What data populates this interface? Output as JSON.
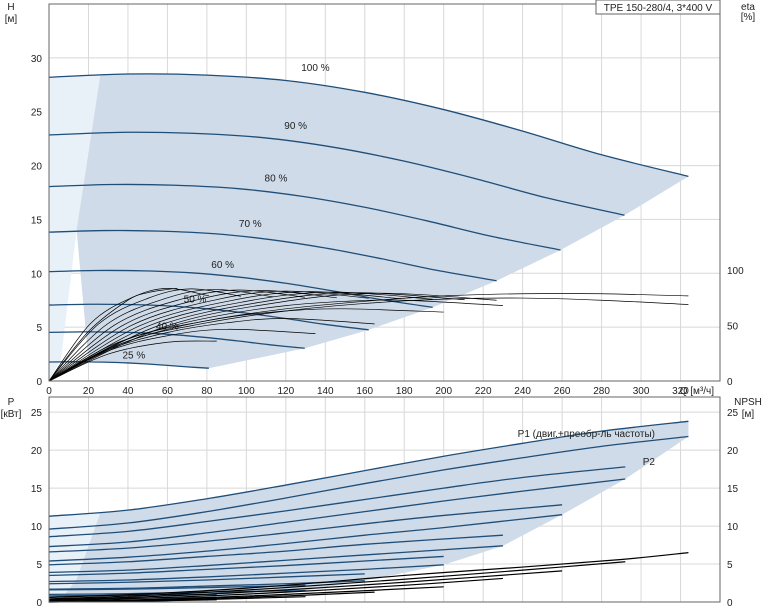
{
  "chart_data": [
    {
      "type": "line",
      "panel": "head",
      "title_box": "TPE 150-280/4, 3*400 V",
      "ylabel": "H",
      "yunit": "[м]",
      "ylabel_right": "eta",
      "yunit_right": "[%]",
      "xlabel": "Q [м³/ч]",
      "xlim": [
        0,
        340
      ],
      "ylim": [
        0,
        35
      ],
      "ylim_right": [
        0,
        100
      ],
      "x_ticks": [
        0,
        20,
        40,
        60,
        80,
        100,
        120,
        140,
        160,
        180,
        200,
        220,
        240,
        260,
        280,
        300,
        320
      ],
      "y_ticks": [
        0,
        5,
        10,
        15,
        20,
        25,
        30
      ],
      "y_ticks_right": [
        0,
        50,
        100
      ],
      "grid": true,
      "colors": {
        "curve": "#1f4e79",
        "area": "#cfdbe8",
        "area_light": "#e8f0f8",
        "efficiency": "#000000"
      },
      "head_curves": [
        {
          "label": "100 %",
          "speed": 1.0,
          "label_at": [
            135,
            28.8
          ]
        },
        {
          "label": "90 %",
          "speed": 0.9,
          "label_at": [
            125,
            23.4
          ]
        },
        {
          "label": "80 %",
          "speed": 0.8,
          "label_at": [
            115,
            18.5
          ]
        },
        {
          "label": "70 %",
          "speed": 0.7,
          "label_at": [
            102,
            14.3
          ]
        },
        {
          "label": "60 %",
          "speed": 0.6,
          "label_at": [
            88,
            10.5
          ]
        },
        {
          "label": "50 %",
          "speed": 0.5,
          "label_at": [
            74,
            7.3
          ]
        },
        {
          "label": "40 %",
          "speed": 0.4,
          "label_at": [
            60,
            4.8
          ]
        },
        {
          "label": "25 %",
          "speed": 0.25,
          "label_at": [
            43,
            2.1
          ]
        }
      ],
      "head_base": {
        "x": [
          0,
          40,
          80,
          120,
          160,
          200,
          240,
          280,
          324
        ],
        "y": [
          28.2,
          28.5,
          28.4,
          27.9,
          26.8,
          25.2,
          23.2,
          21.0,
          19.0
        ]
      },
      "efficiency_curves": [
        {
          "x": [
            0,
            20,
            40,
            50,
            60,
            65
          ],
          "y": [
            0,
            4.6,
            7.5,
            8.2,
            8.5,
            8.6
          ]
        },
        {
          "x": [
            0,
            40,
            80,
            120,
            160,
            200,
            240,
            280,
            324
          ],
          "y": [
            0,
            3.9,
            5.6,
            6.7,
            7.4,
            7.9,
            8.1,
            8.1,
            7.9
          ]
        },
        {
          "x": [
            0,
            40,
            80,
            120,
            160,
            200,
            240,
            280,
            324
          ],
          "y": [
            0,
            3.7,
            5.4,
            6.5,
            7.2,
            7.6,
            7.7,
            7.5,
            7.1
          ]
        },
        {
          "x": [
            0,
            30,
            60,
            90,
            120,
            150,
            180,
            230
          ],
          "y": [
            0,
            3.2,
            5.0,
            6.2,
            7.0,
            7.4,
            7.5,
            7.0
          ]
        },
        {
          "x": [
            0,
            30,
            60,
            90,
            120,
            150,
            200
          ],
          "y": [
            0,
            3.0,
            4.8,
            5.9,
            6.5,
            6.7,
            6.4
          ]
        },
        {
          "x": [
            0,
            30,
            60,
            90,
            120,
            165
          ],
          "y": [
            0,
            2.9,
            4.5,
            5.4,
            5.8,
            5.3
          ]
        },
        {
          "x": [
            0,
            30,
            60,
            90,
            135
          ],
          "y": [
            0,
            2.8,
            4.2,
            4.8,
            4.4
          ]
        },
        {
          "x": [
            0,
            30,
            60,
            85
          ],
          "y": [
            0,
            2.5,
            3.6,
            3.7
          ]
        }
      ]
    },
    {
      "type": "line",
      "panel": "power",
      "ylabel": "P",
      "yunit": "[кВт]",
      "ylabel_right": "NPSH",
      "yunit_right": "[м]",
      "xlim": [
        0,
        340
      ],
      "ylim": [
        0,
        27
      ],
      "ylim_right": [
        0,
        27
      ],
      "y_ticks": [
        0,
        5,
        10,
        15,
        20,
        25
      ],
      "y_ticks_right": [
        0,
        5,
        10,
        15,
        20,
        25
      ],
      "grid": true,
      "labels": {
        "p1": "P1 (двиг.+преобр-ль частоты)",
        "p2": "P2"
      },
      "p1_curves": [
        {
          "x": [
            0,
            40,
            80,
            120,
            160,
            200,
            240,
            280,
            324
          ],
          "y": [
            11.3,
            12.1,
            13.6,
            15.4,
            17.3,
            19.2,
            20.9,
            22.5,
            23.8
          ]
        },
        {
          "x": [
            0,
            40,
            80,
            120,
            160,
            200,
            240,
            292
          ],
          "y": [
            8.6,
            9.3,
            10.6,
            12.0,
            13.5,
            15.0,
            16.4,
            17.8
          ]
        },
        {
          "x": [
            0,
            40,
            80,
            120,
            160,
            200,
            260
          ],
          "y": [
            6.6,
            7.1,
            8.0,
            9.1,
            10.3,
            11.4,
            12.8
          ]
        },
        {
          "x": [
            0,
            40,
            80,
            120,
            160,
            230
          ],
          "y": [
            4.9,
            5.3,
            6.0,
            6.7,
            7.6,
            8.8
          ]
        },
        {
          "x": [
            0,
            40,
            80,
            120,
            160,
            200
          ],
          "y": [
            3.5,
            3.8,
            4.3,
            4.8,
            5.4,
            6.0
          ]
        },
        {
          "x": [
            0,
            40,
            80,
            120,
            160
          ],
          "y": [
            2.4,
            2.6,
            2.9,
            3.3,
            3.7
          ]
        },
        {
          "x": [
            0,
            40,
            80,
            130
          ],
          "y": [
            1.6,
            1.7,
            1.9,
            2.2
          ]
        },
        {
          "x": [
            0,
            40,
            85
          ],
          "y": [
            0.8,
            0.9,
            1.0
          ]
        }
      ],
      "p2_curves": [
        {
          "x": [
            0,
            40,
            80,
            120,
            160,
            200,
            240,
            280,
            324
          ],
          "y": [
            9.6,
            10.4,
            11.9,
            13.7,
            15.6,
            17.4,
            19.0,
            20.5,
            21.8
          ]
        },
        {
          "x": [
            0,
            40,
            80,
            120,
            160,
            200,
            240,
            292
          ],
          "y": [
            7.3,
            7.9,
            9.1,
            10.5,
            11.9,
            13.3,
            14.6,
            16.2
          ]
        },
        {
          "x": [
            0,
            40,
            80,
            120,
            160,
            200,
            260
          ],
          "y": [
            5.4,
            5.9,
            6.7,
            7.7,
            8.8,
            9.8,
            11.5
          ]
        },
        {
          "x": [
            0,
            40,
            80,
            120,
            160,
            230
          ],
          "y": [
            3.9,
            4.2,
            4.8,
            5.5,
            6.2,
            7.4
          ]
        },
        {
          "x": [
            0,
            40,
            80,
            120,
            160,
            200
          ],
          "y": [
            2.7,
            2.9,
            3.3,
            3.8,
            4.3,
            4.9
          ]
        },
        {
          "x": [
            0,
            40,
            80,
            120,
            160
          ],
          "y": [
            1.7,
            1.8,
            2.1,
            2.4,
            2.8
          ]
        },
        {
          "x": [
            0,
            40,
            80,
            130
          ],
          "y": [
            1.0,
            1.1,
            1.3,
            1.5
          ]
        },
        {
          "x": [
            0,
            40,
            85
          ],
          "y": [
            0.4,
            0.5,
            0.6
          ]
        }
      ],
      "npsh_curves": [
        {
          "x": [
            0,
            60,
            120,
            180,
            240,
            290,
            324
          ],
          "y": [
            0.6,
            1.2,
            2.2,
            3.5,
            4.6,
            5.6,
            6.5
          ]
        },
        {
          "x": [
            0,
            60,
            120,
            180,
            240,
            292
          ],
          "y": [
            0.4,
            1.0,
            1.9,
            3.0,
            4.2,
            5.3
          ]
        },
        {
          "x": [
            0,
            60,
            120,
            180,
            260
          ],
          "y": [
            0.3,
            0.8,
            1.6,
            2.6,
            4.1
          ]
        },
        {
          "x": [
            0,
            60,
            120,
            180,
            230
          ],
          "y": [
            0.2,
            0.6,
            1.3,
            2.2,
            3.1
          ]
        },
        {
          "x": [
            0,
            60,
            120,
            200
          ],
          "y": [
            0.1,
            0.4,
            1.0,
            2.0
          ]
        },
        {
          "x": [
            0,
            60,
            120,
            165
          ],
          "y": [
            0.05,
            0.3,
            0.8,
            1.3
          ]
        },
        {
          "x": [
            0,
            60,
            130
          ],
          "y": [
            0.0,
            0.2,
            0.7
          ]
        },
        {
          "x": [
            0,
            40,
            85
          ],
          "y": [
            0.0,
            0.1,
            0.3
          ]
        }
      ]
    }
  ]
}
